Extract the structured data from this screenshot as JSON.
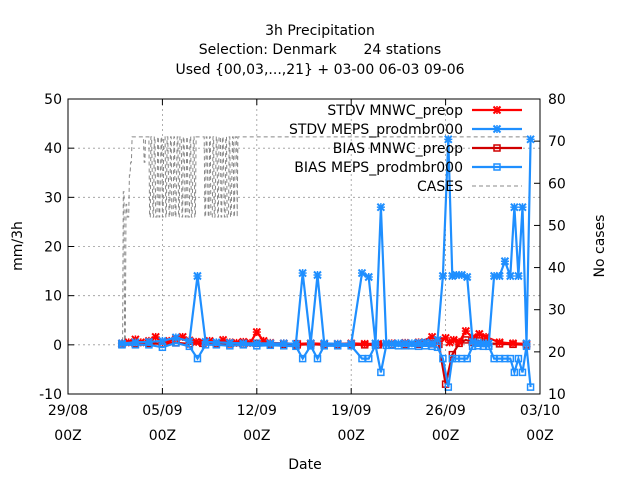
{
  "chart_data": {
    "type": "line",
    "title_lines": [
      "3h Precipitation",
      "Selection: Denmark      24 stations",
      "Used {00,03,...,21} + 03-00 06-03 09-06"
    ],
    "xlabel": "Date",
    "ylabel": "mm/3h",
    "y2label": "No cases",
    "xlim": [
      0,
      35
    ],
    "ylim": [
      -10,
      50
    ],
    "y2lim": [
      10,
      80
    ],
    "x_ticks": [
      {
        "x": 0,
        "line1": "29/08",
        "line2": "00Z"
      },
      {
        "x": 7,
        "line1": "05/09",
        "line2": "00Z"
      },
      {
        "x": 14,
        "line1": "12/09",
        "line2": "00Z"
      },
      {
        "x": 21,
        "line1": "19/09",
        "line2": "00Z"
      },
      {
        "x": 28,
        "line1": "26/09",
        "line2": "00Z"
      },
      {
        "x": 35,
        "line1": "03/10",
        "line2": "00Z"
      }
    ],
    "y_ticks": [
      -10,
      0,
      10,
      20,
      30,
      40,
      50
    ],
    "y2_ticks": [
      10,
      20,
      30,
      40,
      50,
      60,
      70,
      80
    ],
    "grid": true,
    "legend_position": "top-right",
    "series": [
      {
        "name": "STDV MNWC_preop",
        "color": "#ff0000",
        "marker": "x",
        "axis": "y",
        "x": [
          4.0,
          4.5,
          5.0,
          5.4,
          6.0,
          6.5,
          7.0,
          7.5,
          8.0,
          8.5,
          9.0,
          9.5,
          10.0,
          10.5,
          11.0,
          11.5,
          12.0,
          12.5,
          13.0,
          13.5,
          14.0,
          14.5,
          15.0,
          16.0,
          17.0,
          18.0,
          19.0,
          20.0,
          21.0,
          22.0,
          23.0,
          24.0,
          25.0,
          26.0,
          27.0,
          27.5,
          28.0,
          28.3,
          28.6,
          29.0,
          29.5,
          30.0,
          30.5,
          31.0,
          32.0,
          33.0,
          34.0
        ],
        "y": [
          0.3,
          0.5,
          1.1,
          0.5,
          0.8,
          1.6,
          0.5,
          0.8,
          1.2,
          1.6,
          0.9,
          0.6,
          0.5,
          0.8,
          0.4,
          1.0,
          0.5,
          0.4,
          0.6,
          0.4,
          2.6,
          0.8,
          0.4,
          0.3,
          0.2,
          0.3,
          0.2,
          0.2,
          0.3,
          0.2,
          0.2,
          0.3,
          0.4,
          0.5,
          1.6,
          0.8,
          1.4,
          0.5,
          1.0,
          0.6,
          2.8,
          1.5,
          2.2,
          1.6,
          0.5,
          0.3,
          0.2
        ]
      },
      {
        "name": "STDV MEPS_prodmbr000",
        "color": "#1f8fff",
        "marker": "x",
        "axis": "y",
        "x": [
          4.0,
          5.0,
          6.0,
          7.0,
          8.0,
          9.0,
          9.6,
          10.2,
          11.0,
          12.0,
          13.0,
          14.0,
          15.0,
          16.0,
          16.9,
          17.4,
          18.0,
          18.5,
          19.0,
          20.0,
          21.0,
          21.8,
          22.3,
          22.8,
          23.2,
          23.6,
          24.0,
          24.5,
          25.0,
          25.5,
          26.0,
          26.5,
          27.0,
          27.4,
          27.8,
          28.2,
          28.5,
          28.8,
          29.2,
          29.6,
          30.0,
          30.4,
          30.8,
          31.2,
          31.6,
          32.0,
          32.4,
          32.8,
          33.1,
          33.4,
          33.7,
          34.0,
          34.3
        ],
        "y": [
          0.3,
          0.5,
          0.6,
          0.8,
          1.5,
          0.7,
          14.0,
          0.6,
          0.5,
          0.4,
          0.3,
          0.3,
          0.3,
          0.3,
          0.2,
          14.6,
          0.3,
          14.2,
          0.3,
          0.2,
          0.2,
          14.6,
          13.8,
          0.3,
          28.0,
          0.3,
          0.2,
          0.3,
          0.3,
          0.3,
          0.4,
          0.5,
          0.3,
          1.0,
          14.0,
          41.8,
          14.0,
          14.2,
          14.2,
          13.8,
          0.6,
          0.4,
          0.3,
          0.3,
          14.0,
          14.0,
          17.0,
          14.0,
          28.0,
          14.0,
          28.0,
          0.3,
          41.8
        ]
      },
      {
        "name": "BIAS MNWC_preop",
        "color": "#d00000",
        "marker": "square",
        "axis": "y",
        "x": [
          4.0,
          5.0,
          6.0,
          7.0,
          8.0,
          9.0,
          10.0,
          11.0,
          12.0,
          13.0,
          14.0,
          15.0,
          16.0,
          17.0,
          18.0,
          19.0,
          20.0,
          21.0,
          22.0,
          23.0,
          24.0,
          25.0,
          26.0,
          27.0,
          27.5,
          28.0,
          28.5,
          29.0,
          29.5,
          30.0,
          30.5,
          31.0,
          32.0,
          33.0,
          34.0
        ],
        "y": [
          0.1,
          0.2,
          0.3,
          0.2,
          0.4,
          0.2,
          0.3,
          0.2,
          0.2,
          0.1,
          0.3,
          0.1,
          0.1,
          0.0,
          0.1,
          0.0,
          0.0,
          0.0,
          0.0,
          0.0,
          0.0,
          0.0,
          0.1,
          0.2,
          0.1,
          -8.0,
          -2.0,
          0.3,
          1.0,
          0.5,
          0.8,
          0.3,
          0.2,
          0.1,
          0.0
        ]
      },
      {
        "name": "BIAS MEPS_prodmbr000",
        "color": "#1f8fff",
        "marker": "square",
        "axis": "y",
        "x": [
          4.0,
          5.0,
          6.0,
          7.0,
          8.0,
          9.0,
          9.6,
          10.2,
          11.0,
          12.0,
          13.0,
          14.0,
          15.0,
          16.0,
          16.9,
          17.4,
          18.0,
          18.5,
          19.0,
          20.0,
          21.0,
          21.8,
          22.3,
          22.8,
          23.2,
          23.6,
          24.0,
          24.5,
          25.0,
          25.5,
          26.0,
          26.5,
          27.0,
          27.4,
          27.8,
          28.2,
          28.5,
          28.8,
          29.2,
          29.6,
          30.0,
          30.4,
          30.8,
          31.2,
          31.6,
          32.0,
          32.4,
          32.8,
          33.1,
          33.4,
          33.7,
          34.0,
          34.3
        ],
        "y": [
          0.0,
          0.0,
          0.0,
          -0.5,
          0.4,
          -0.3,
          -2.8,
          0.0,
          0.0,
          -0.2,
          0.0,
          -0.2,
          -0.1,
          -0.2,
          -0.3,
          -2.8,
          -0.2,
          -2.8,
          -0.2,
          -0.2,
          -0.2,
          -2.8,
          -2.8,
          -0.1,
          -5.6,
          -0.1,
          -0.1,
          -0.2,
          -0.2,
          -0.2,
          -0.3,
          -0.2,
          -0.3,
          -0.5,
          -2.8,
          -8.6,
          -2.8,
          -2.8,
          -2.8,
          -2.8,
          -0.3,
          -0.2,
          -0.3,
          -0.3,
          -2.8,
          -2.8,
          -2.8,
          -2.8,
          -5.6,
          -2.8,
          -5.6,
          -0.3,
          -8.6
        ]
      },
      {
        "name": "CASES",
        "color": "#888888",
        "marker": "none",
        "dash": true,
        "axis": "y2",
        "x": [
          4.0,
          4.05,
          4.1,
          4.15,
          4.2,
          4.25,
          4.3,
          4.35,
          4.4,
          4.5,
          4.55,
          4.6,
          4.65,
          4.7,
          4.75,
          4.8,
          4.9,
          5.0,
          5.5,
          5.6,
          5.65,
          5.7,
          5.75,
          6.0,
          6.05,
          6.1,
          6.15,
          6.2,
          6.3,
          6.35,
          6.4,
          6.45,
          6.5,
          6.6,
          6.65,
          6.7,
          6.75,
          6.8,
          6.9,
          6.95,
          7.0,
          7.05,
          7.1,
          7.2,
          7.25,
          7.3,
          7.35,
          7.4,
          7.5,
          7.55,
          7.6,
          7.65,
          7.7,
          7.8,
          7.85,
          7.9,
          7.95,
          8.0,
          8.1,
          8.15,
          8.2,
          8.25,
          8.3,
          8.4,
          8.45,
          8.5,
          8.55,
          8.6,
          8.7,
          8.75,
          8.8,
          8.85,
          8.9,
          9.0,
          9.05,
          9.1,
          9.15,
          9.2,
          9.3,
          9.35,
          9.4,
          9.45,
          9.5,
          10.0,
          10.1,
          10.15,
          10.2,
          10.25,
          10.3,
          10.4,
          10.45,
          10.5,
          10.55,
          10.6,
          10.7,
          10.75,
          10.8,
          10.85,
          10.9,
          11.0,
          11.05,
          11.1,
          11.15,
          11.2,
          11.3,
          11.35,
          11.4,
          11.45,
          11.5,
          11.6,
          11.65,
          11.7,
          11.75,
          11.8,
          11.9,
          11.95,
          12.0,
          12.05,
          12.1,
          12.2,
          12.25,
          12.3,
          12.35,
          12.4,
          12.5,
          12.55,
          12.6,
          13.0,
          34.3
        ],
        "y": [
          21,
          21,
          58,
          58,
          21,
          21,
          55,
          55,
          52,
          52,
          62,
          62,
          65,
          65,
          71,
          71,
          71,
          71,
          71,
          71,
          65,
          65,
          71,
          71,
          52,
          52,
          71,
          71,
          52,
          52,
          71,
          71,
          52,
          52,
          71,
          71,
          52,
          52,
          71,
          71,
          52,
          52,
          71,
          71,
          52,
          52,
          71,
          71,
          52,
          52,
          71,
          71,
          52,
          52,
          71,
          71,
          52,
          52,
          71,
          71,
          52,
          52,
          71,
          71,
          52,
          52,
          71,
          71,
          52,
          52,
          71,
          71,
          52,
          52,
          71,
          71,
          52,
          52,
          71,
          71,
          52,
          52,
          71,
          71,
          71,
          52,
          52,
          71,
          71,
          52,
          52,
          71,
          71,
          52,
          52,
          71,
          71,
          52,
          52,
          71,
          71,
          52,
          52,
          71,
          71,
          52,
          52,
          71,
          71,
          52,
          52,
          71,
          71,
          52,
          52,
          71,
          71,
          52,
          52,
          71,
          71,
          52,
          52,
          71,
          71,
          52,
          71,
          71,
          71
        ]
      }
    ]
  }
}
